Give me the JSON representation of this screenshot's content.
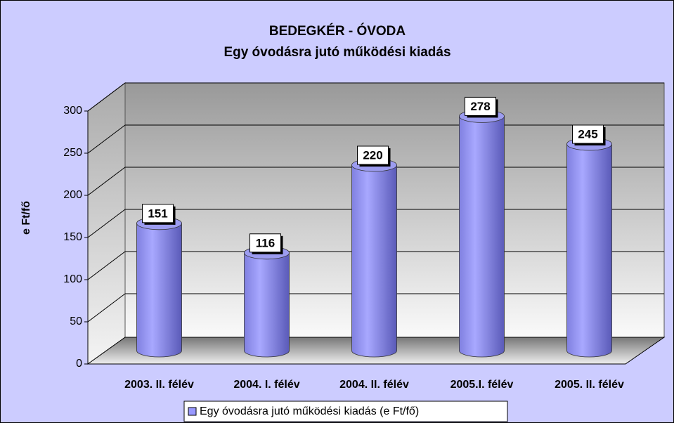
{
  "chart_data": {
    "type": "bar3d",
    "title": "BEDEGKÉR - ÓVODA",
    "subtitle": "Egy óvodásra jutó működési kiadás",
    "y_label": "e Ft/fő",
    "categories": [
      "2003. II. félév",
      "2004. I. félév",
      "2004. II. félév",
      "2005.I. félév",
      "2005. II. félév"
    ],
    "series": [
      {
        "name": "Egy óvodásra jutó működési kiadás (e Ft/fő)",
        "color": "#9999ff",
        "values": [
          151,
          116,
          220,
          278,
          245
        ]
      }
    ],
    "ylim": [
      0,
      300
    ],
    "yticks": [
      0,
      50,
      100,
      150,
      200,
      250,
      300
    ],
    "grid": true,
    "legend": "bottom"
  }
}
